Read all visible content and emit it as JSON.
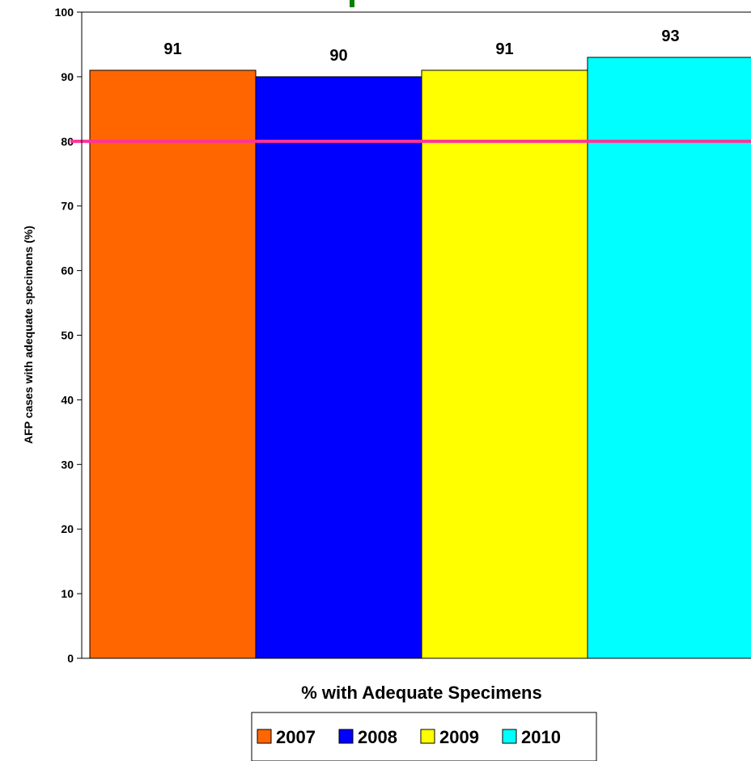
{
  "chart_data": {
    "type": "bar",
    "title": "",
    "xlabel": "% with Adequate Specimens",
    "ylabel": "AFP cases with adequate specimens (%)",
    "ylim": [
      0,
      100
    ],
    "yticks": [
      0,
      10,
      20,
      30,
      40,
      50,
      60,
      70,
      80,
      90,
      100
    ],
    "categories": [
      "% with Adequate Specimens"
    ],
    "series": [
      {
        "name": "2007",
        "values": [
          91
        ],
        "color": "#FF6600"
      },
      {
        "name": "2008",
        "values": [
          90
        ],
        "color": "#0000FF"
      },
      {
        "name": "2009",
        "values": [
          91
        ],
        "color": "#FFFF00"
      },
      {
        "name": "2010",
        "values": [
          93
        ],
        "color": "#00FFFF"
      }
    ],
    "reference_line": {
      "value": 80,
      "color": "#FF3399"
    },
    "grid": false,
    "legend_position": "bottom"
  }
}
